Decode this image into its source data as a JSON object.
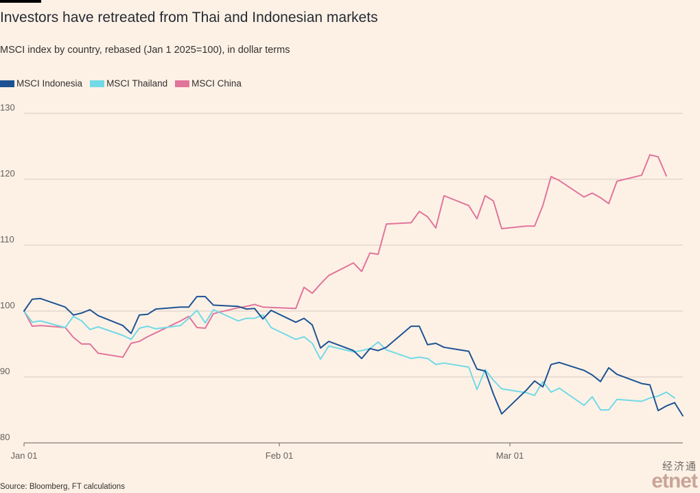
{
  "title": "Investors have retreated from Thai and Indonesian markets",
  "subtitle": "MSCI index by country, rebased (Jan 1 2025=100), in dollar terms",
  "source": "Source: Bloomberg, FT calculations",
  "logo": {
    "cn": "经济通",
    "en": "etnet"
  },
  "chart_data": {
    "type": "line",
    "x_unit": "date",
    "xlim": [
      "2025-01-01",
      "2025-03-22"
    ],
    "ylim": [
      80,
      130
    ],
    "yticks": [
      80,
      90,
      100,
      110,
      120,
      130
    ],
    "ytick_labels": [
      "80",
      "90",
      "100",
      "110",
      "120",
      "130"
    ],
    "xticks": [
      "2025-01-01",
      "2025-02-01",
      "2025-03-01"
    ],
    "xtick_labels": [
      "Jan 01",
      "Feb 01",
      "Mar 01"
    ],
    "grid": true,
    "legend_position": "top-left",
    "series": [
      {
        "name": "MSCI Indonesia",
        "color": "#1C5293",
        "points": [
          [
            "2025-01-01",
            100
          ],
          [
            "2025-01-02",
            101.8
          ],
          [
            "2025-01-03",
            101.9
          ],
          [
            "2025-01-06",
            100.6
          ],
          [
            "2025-01-07",
            99.4
          ],
          [
            "2025-01-08",
            99.7
          ],
          [
            "2025-01-09",
            100.2
          ],
          [
            "2025-01-10",
            99.3
          ],
          [
            "2025-01-13",
            97.8
          ],
          [
            "2025-01-14",
            96.6
          ],
          [
            "2025-01-15",
            99.4
          ],
          [
            "2025-01-16",
            99.5
          ],
          [
            "2025-01-17",
            100.3
          ],
          [
            "2025-01-20",
            100.6
          ],
          [
            "2025-01-21",
            100.6
          ],
          [
            "2025-01-22",
            102.2
          ],
          [
            "2025-01-23",
            102.2
          ],
          [
            "2025-01-24",
            100.9
          ],
          [
            "2025-01-27",
            100.7
          ],
          [
            "2025-01-28",
            100.3
          ],
          [
            "2025-01-29",
            100.4
          ],
          [
            "2025-01-30",
            98.8
          ],
          [
            "2025-01-31",
            100.1
          ],
          [
            "2025-02-03",
            98.3
          ],
          [
            "2025-02-04",
            98.9
          ],
          [
            "2025-02-05",
            97.9
          ],
          [
            "2025-02-06",
            94.4
          ],
          [
            "2025-02-07",
            95.4
          ],
          [
            "2025-02-10",
            94.0
          ],
          [
            "2025-02-11",
            92.8
          ],
          [
            "2025-02-12",
            94.3
          ],
          [
            "2025-02-13",
            94.0
          ],
          [
            "2025-02-14",
            94.5
          ],
          [
            "2025-02-17",
            97.7
          ],
          [
            "2025-02-18",
            97.7
          ],
          [
            "2025-02-19",
            94.9
          ],
          [
            "2025-02-20",
            95.1
          ],
          [
            "2025-02-21",
            94.5
          ],
          [
            "2025-02-24",
            93.9
          ],
          [
            "2025-02-25",
            91.2
          ],
          [
            "2025-02-26",
            90.9
          ],
          [
            "2025-02-27",
            87.4
          ],
          [
            "2025-02-28",
            84.4
          ],
          [
            "2025-03-03",
            88.0
          ],
          [
            "2025-03-04",
            89.4
          ],
          [
            "2025-03-05",
            88.5
          ],
          [
            "2025-03-06",
            91.9
          ],
          [
            "2025-03-07",
            92.2
          ],
          [
            "2025-03-10",
            91.0
          ],
          [
            "2025-03-11",
            90.3
          ],
          [
            "2025-03-12",
            89.3
          ],
          [
            "2025-03-13",
            91.4
          ],
          [
            "2025-03-14",
            90.4
          ],
          [
            "2025-03-17",
            89.0
          ],
          [
            "2025-03-18",
            88.8
          ],
          [
            "2025-03-19",
            84.9
          ],
          [
            "2025-03-20",
            85.6
          ],
          [
            "2025-03-21",
            86.1
          ],
          [
            "2025-03-22",
            84.1
          ]
        ]
      },
      {
        "name": "MSCI Thailand",
        "color": "#72D9E6",
        "points": [
          [
            "2025-01-01",
            100
          ],
          [
            "2025-01-02",
            98.3
          ],
          [
            "2025-01-03",
            98.5
          ],
          [
            "2025-01-06",
            97.5
          ],
          [
            "2025-01-07",
            99.2
          ],
          [
            "2025-01-08",
            98.5
          ],
          [
            "2025-01-09",
            97.2
          ],
          [
            "2025-01-10",
            97.6
          ],
          [
            "2025-01-13",
            96.3
          ],
          [
            "2025-01-14",
            95.7
          ],
          [
            "2025-01-15",
            97.4
          ],
          [
            "2025-01-16",
            97.7
          ],
          [
            "2025-01-17",
            97.3
          ],
          [
            "2025-01-20",
            97.8
          ],
          [
            "2025-01-21",
            98.9
          ],
          [
            "2025-01-22",
            100.1
          ],
          [
            "2025-01-23",
            98.2
          ],
          [
            "2025-01-24",
            100.2
          ],
          [
            "2025-01-27",
            98.5
          ],
          [
            "2025-01-28",
            98.9
          ],
          [
            "2025-01-29",
            98.9
          ],
          [
            "2025-01-30",
            99.4
          ],
          [
            "2025-01-31",
            97.5
          ],
          [
            "2025-02-03",
            95.7
          ],
          [
            "2025-02-04",
            96.1
          ],
          [
            "2025-02-05",
            95.1
          ],
          [
            "2025-02-06",
            92.7
          ],
          [
            "2025-02-07",
            94.7
          ],
          [
            "2025-02-10",
            93.8
          ],
          [
            "2025-02-11",
            94.0
          ],
          [
            "2025-02-12",
            94.3
          ],
          [
            "2025-02-13",
            95.3
          ],
          [
            "2025-02-14",
            94.1
          ],
          [
            "2025-02-17",
            92.8
          ],
          [
            "2025-02-18",
            93.0
          ],
          [
            "2025-02-19",
            92.8
          ],
          [
            "2025-02-20",
            91.9
          ],
          [
            "2025-02-21",
            92.1
          ],
          [
            "2025-02-24",
            91.5
          ],
          [
            "2025-02-25",
            88.1
          ],
          [
            "2025-02-26",
            91.1
          ],
          [
            "2025-02-27",
            89.5
          ],
          [
            "2025-02-28",
            88.2
          ],
          [
            "2025-03-03",
            87.6
          ],
          [
            "2025-03-04",
            87.2
          ],
          [
            "2025-03-05",
            89.3
          ],
          [
            "2025-03-06",
            87.7
          ],
          [
            "2025-03-07",
            88.3
          ],
          [
            "2025-03-10",
            85.7
          ],
          [
            "2025-03-11",
            87.0
          ],
          [
            "2025-03-12",
            85.0
          ],
          [
            "2025-03-13",
            85.0
          ],
          [
            "2025-03-14",
            86.6
          ],
          [
            "2025-03-17",
            86.3
          ],
          [
            "2025-03-18",
            86.8
          ],
          [
            "2025-03-19",
            87.1
          ],
          [
            "2025-03-20",
            87.7
          ],
          [
            "2025-03-21",
            86.8
          ]
        ]
      },
      {
        "name": "MSCI China",
        "color": "#E1749A",
        "points": [
          [
            "2025-01-01",
            100
          ],
          [
            "2025-01-02",
            97.7
          ],
          [
            "2025-01-03",
            97.8
          ],
          [
            "2025-01-06",
            97.5
          ],
          [
            "2025-01-07",
            96.0
          ],
          [
            "2025-01-08",
            95.0
          ],
          [
            "2025-01-09",
            95.0
          ],
          [
            "2025-01-10",
            93.6
          ],
          [
            "2025-01-13",
            93.0
          ],
          [
            "2025-01-14",
            95.1
          ],
          [
            "2025-01-15",
            95.4
          ],
          [
            "2025-01-16",
            96.1
          ],
          [
            "2025-01-17",
            96.7
          ],
          [
            "2025-01-20",
            98.5
          ],
          [
            "2025-01-21",
            99.2
          ],
          [
            "2025-01-22",
            97.5
          ],
          [
            "2025-01-23",
            97.4
          ],
          [
            "2025-01-24",
            99.6
          ],
          [
            "2025-01-27",
            100.5
          ],
          [
            "2025-01-28",
            100.7
          ],
          [
            "2025-01-29",
            101.0
          ],
          [
            "2025-01-30",
            100.6
          ],
          [
            "2025-02-03",
            100.4
          ],
          [
            "2025-02-04",
            103.6
          ],
          [
            "2025-02-05",
            102.7
          ],
          [
            "2025-02-06",
            104.1
          ],
          [
            "2025-02-07",
            105.4
          ],
          [
            "2025-02-10",
            107.3
          ],
          [
            "2025-02-11",
            106.0
          ],
          [
            "2025-02-12",
            108.8
          ],
          [
            "2025-02-13",
            108.6
          ],
          [
            "2025-02-14",
            113.2
          ],
          [
            "2025-02-17",
            113.4
          ],
          [
            "2025-02-18",
            115.1
          ],
          [
            "2025-02-19",
            114.3
          ],
          [
            "2025-02-20",
            112.6
          ],
          [
            "2025-02-21",
            117.5
          ],
          [
            "2025-02-24",
            116.0
          ],
          [
            "2025-02-25",
            114.0
          ],
          [
            "2025-02-26",
            117.5
          ],
          [
            "2025-02-27",
            116.7
          ],
          [
            "2025-02-28",
            112.5
          ],
          [
            "2025-03-03",
            112.9
          ],
          [
            "2025-03-04",
            112.9
          ],
          [
            "2025-03-05",
            116.0
          ],
          [
            "2025-03-06",
            120.4
          ],
          [
            "2025-03-07",
            119.8
          ],
          [
            "2025-03-10",
            117.3
          ],
          [
            "2025-03-11",
            117.9
          ],
          [
            "2025-03-12",
            117.2
          ],
          [
            "2025-03-13",
            116.3
          ],
          [
            "2025-03-14",
            119.7
          ],
          [
            "2025-03-17",
            120.6
          ],
          [
            "2025-03-18",
            123.7
          ],
          [
            "2025-03-19",
            123.4
          ],
          [
            "2025-03-20",
            120.5
          ]
        ]
      }
    ]
  }
}
